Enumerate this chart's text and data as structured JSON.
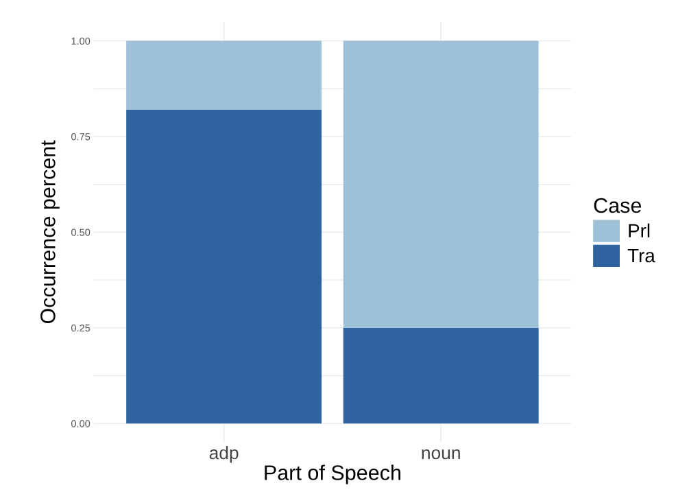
{
  "chart_data": {
    "type": "bar",
    "stacked": true,
    "xlabel": "Part of Speech",
    "ylabel": "Occurrence percent",
    "legend_title": "Case",
    "categories": [
      "adp",
      "noun"
    ],
    "series": [
      {
        "name": "Tra",
        "color": "#2f64a0",
        "values": [
          0.82,
          0.25
        ]
      },
      {
        "name": "Prl",
        "color": "#9fc2d8",
        "values": [
          0.18,
          0.75
        ]
      }
    ],
    "ylim": [
      -0.05,
      1.05
    ],
    "yticks": [
      {
        "value": 0,
        "label": "0.00"
      },
      {
        "value": 0.125,
        "label": null
      },
      {
        "value": 0.25,
        "label": "0.25"
      },
      {
        "value": 0.375,
        "label": null
      },
      {
        "value": 0.5,
        "label": "0.50"
      },
      {
        "value": 0.625,
        "label": null
      },
      {
        "value": 0.75,
        "label": "0.75"
      },
      {
        "value": 0.875,
        "label": null
      },
      {
        "value": 1,
        "label": "1.00"
      }
    ],
    "grid": true,
    "legend": "right"
  }
}
